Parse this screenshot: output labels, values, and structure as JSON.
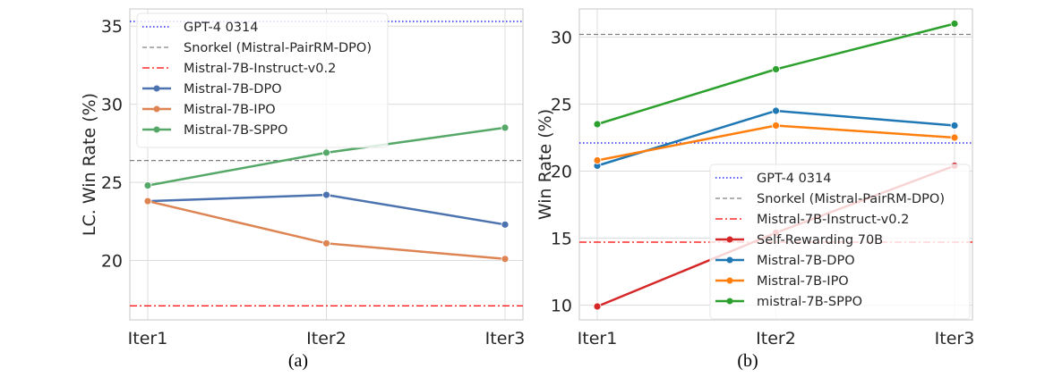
{
  "chart_data": [
    {
      "type": "line",
      "caption": "(a)",
      "xlabel": "",
      "ylabel": "LC. Win Rate (%)",
      "categories": [
        "Iter1",
        "Iter2",
        "Iter3"
      ],
      "ylim": [
        16.2,
        36.1
      ],
      "yticks": [
        20,
        25,
        30,
        35
      ],
      "grid": true,
      "legend_position": "top-left",
      "hlines": [
        {
          "name": "GPT-4 0314",
          "value": 35.3,
          "color": "#0000ff",
          "style": "dotted"
        },
        {
          "name": "Snorkel (Mistral-PairRM-DPO)",
          "value": 26.4,
          "color": "#808080",
          "style": "dashed"
        },
        {
          "name": "Mistral-7B-Instruct-v0.2",
          "value": 17.1,
          "color": "#ff0000",
          "style": "dashdot"
        }
      ],
      "series": [
        {
          "name": "Mistral-7B-DPO",
          "values": [
            23.8,
            24.2,
            22.3
          ],
          "color": "#4c72b0"
        },
        {
          "name": "Mistral-7B-IPO",
          "values": [
            23.8,
            21.1,
            20.1
          ],
          "color": "#dd8452"
        },
        {
          "name": "Mistral-7B-SPPO",
          "values": [
            24.8,
            26.9,
            28.5
          ],
          "color": "#55a868"
        }
      ]
    },
    {
      "type": "line",
      "caption": "(b)",
      "xlabel": "",
      "ylabel": "Win Rate (%)",
      "categories": [
        "Iter1",
        "Iter2",
        "Iter3"
      ],
      "ylim": [
        8.9,
        32.1
      ],
      "yticks": [
        10,
        15,
        20,
        25,
        30
      ],
      "grid": true,
      "legend_position": "lower-right",
      "hlines": [
        {
          "name": "GPT-4 0314",
          "value": 22.1,
          "color": "#0000ff",
          "style": "dotted"
        },
        {
          "name": "Snorkel (Mistral-PairRM-DPO)",
          "value": 30.2,
          "color": "#808080",
          "style": "dashed"
        },
        {
          "name": "Mistral-7B-Instruct-v0.2",
          "value": 14.7,
          "color": "#ff0000",
          "style": "dashdot"
        }
      ],
      "series": [
        {
          "name": "Self-Rewarding 70B",
          "values": [
            9.9,
            15.4,
            20.4
          ],
          "color": "#d62728"
        },
        {
          "name": "Mistral-7B-DPO",
          "values": [
            20.4,
            24.5,
            23.4
          ],
          "color": "#1f77b4"
        },
        {
          "name": "Mistral-7B-IPO",
          "values": [
            20.8,
            23.4,
            22.5
          ],
          "color": "#ff7f0e"
        },
        {
          "name": "mistral-7B-SPPO",
          "values": [
            23.5,
            27.6,
            31.0
          ],
          "color": "#2ca02c"
        }
      ]
    }
  ]
}
